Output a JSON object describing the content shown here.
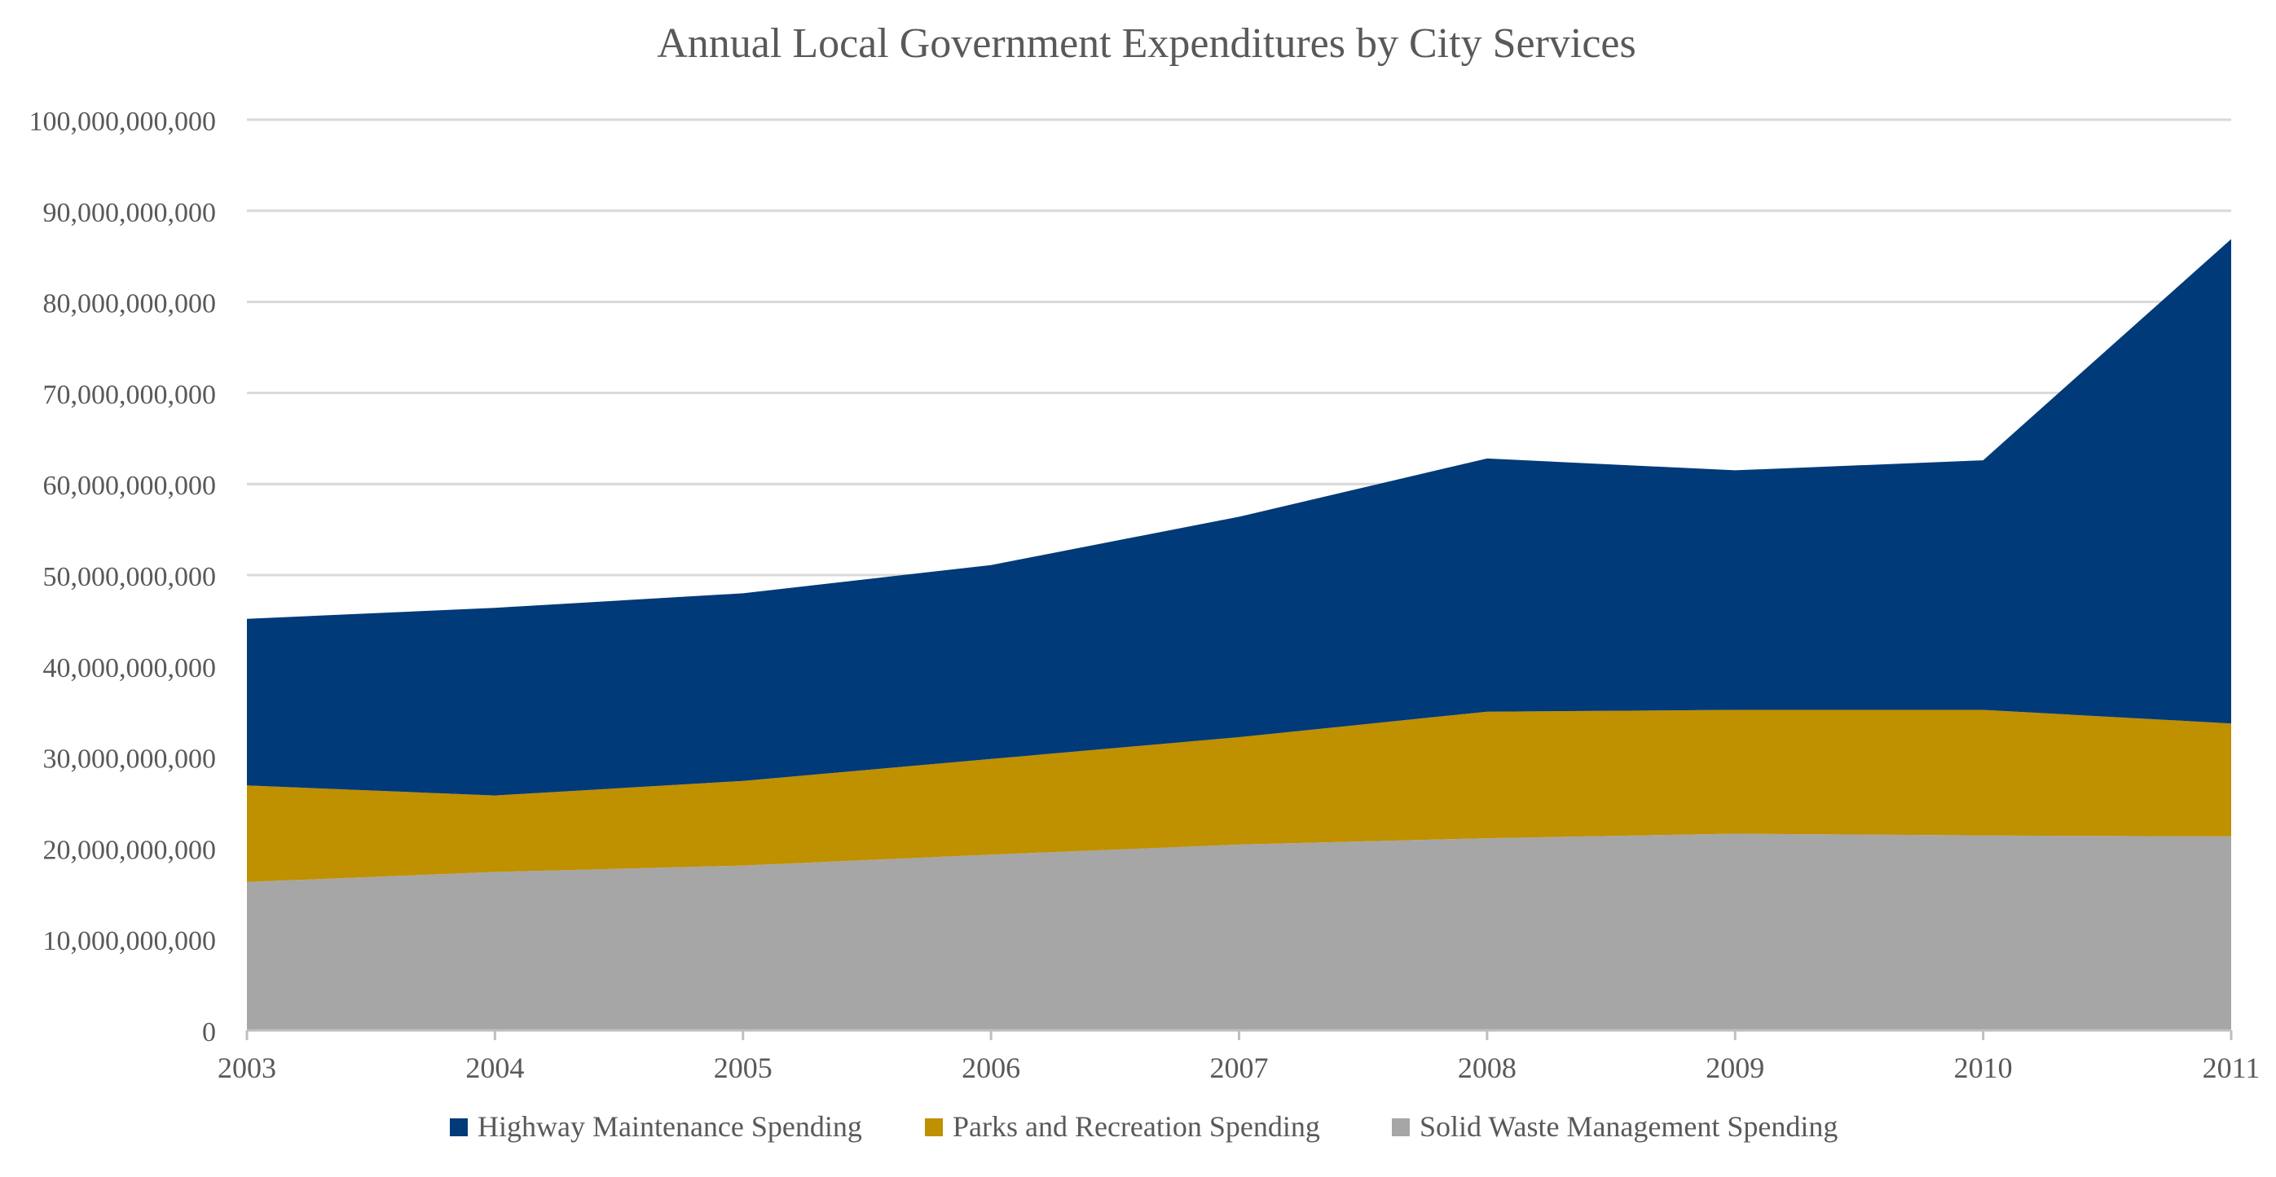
{
  "chart_data": {
    "type": "area",
    "stacked": true,
    "title": "Annual Local Government Expenditures by City Services",
    "xlabel": "",
    "ylabel": "",
    "categories": [
      "2003",
      "2004",
      "2005",
      "2006",
      "2007",
      "2008",
      "2009",
      "2010",
      "2011"
    ],
    "ylim": [
      0,
      100000000000
    ],
    "yticks": [
      0,
      10000000000,
      20000000000,
      30000000000,
      40000000000,
      50000000000,
      60000000000,
      70000000000,
      80000000000,
      90000000000,
      100000000000
    ],
    "ytick_labels": [
      "0",
      "10,000,000,000",
      "20,000,000,000",
      "30,000,000,000",
      "40,000,000,000",
      "50,000,000,000",
      "60,000,000,000",
      "70,000,000,000",
      "80,000,000,000",
      "90,000,000,000",
      "100,000,000,000"
    ],
    "grid": true,
    "legend_position": "bottom",
    "series": [
      {
        "name": "Solid Waste Management Spending",
        "color": "#a6a6a6",
        "values": [
          16300000000,
          17400000000,
          18100000000,
          19300000000,
          20400000000,
          21100000000,
          21600000000,
          21400000000,
          21300000000
        ]
      },
      {
        "name": "Parks and Recreation Spending",
        "color": "#bf9000",
        "values": [
          10600000000,
          8400000000,
          9300000000,
          10500000000,
          11800000000,
          13900000000,
          13600000000,
          13800000000,
          12400000000
        ]
      },
      {
        "name": "Highway Maintenance Spending",
        "color": "#003a78",
        "values": [
          18300000000,
          20600000000,
          20600000000,
          21300000000,
          24200000000,
          27800000000,
          26300000000,
          27400000000,
          53200000000
        ]
      }
    ],
    "legend_order": [
      "Highway Maintenance Spending",
      "Parks and Recreation Spending",
      "Solid Waste Management Spending"
    ]
  }
}
